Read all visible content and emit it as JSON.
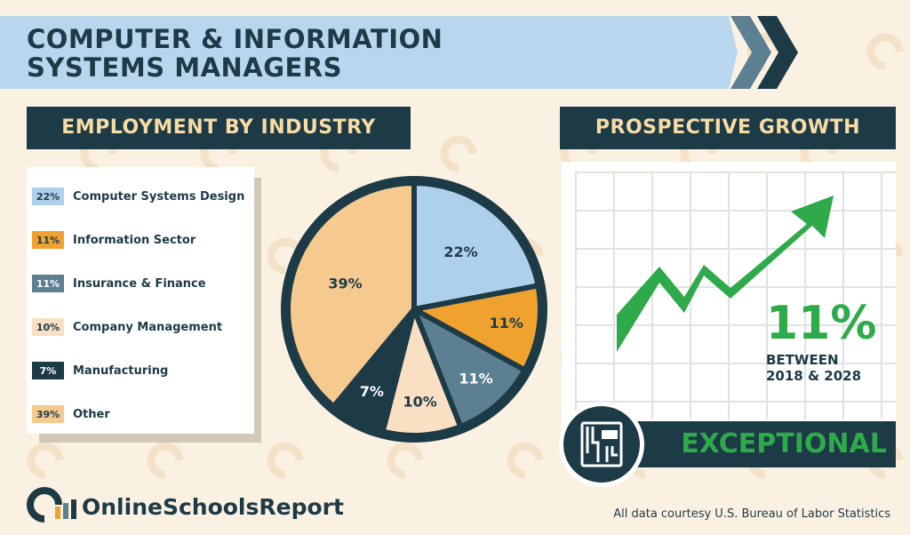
{
  "header": {
    "title_line1": "COMPUTER & INFORMATION",
    "title_line2": "SYSTEMS MANAGERS"
  },
  "employment": {
    "heading": "EMPLOYMENT BY INDUSTRY"
  },
  "chart_data": {
    "type": "pie",
    "slices": [
      {
        "label": "Computer Systems Design",
        "value": 22,
        "value_text": "22%",
        "color": "#aed0ec",
        "text_color": "#1d3a47"
      },
      {
        "label": "Information Sector",
        "value": 11,
        "value_text": "11%",
        "color": "#f0a22e",
        "text_color": "#1d3a47"
      },
      {
        "label": "Insurance & Finance",
        "value": 11,
        "value_text": "11%",
        "color": "#5d7f92",
        "text_color": "#ffffff"
      },
      {
        "label": "Company Management",
        "value": 10,
        "value_text": "10%",
        "color": "#fae0c2",
        "text_color": "#1d3a47"
      },
      {
        "label": "Manufacturing",
        "value": 7,
        "value_text": "7%",
        "color": "#1d3a47",
        "text_color": "#ffffff"
      },
      {
        "label": "Other",
        "value": 39,
        "value_text": "39%",
        "color": "#f6ca8e",
        "text_color": "#1d3a47"
      }
    ],
    "legend_position": "left",
    "title": ""
  },
  "growth": {
    "heading": "PROSPECTIVE GROWTH",
    "percent": "11%",
    "period_line1": "BETWEEN",
    "period_line2": "2018 & 2028",
    "rating": "EXCEPTIONAL",
    "arrow_color": "#2eaa4a"
  },
  "footer": {
    "brand": "OnlineSchoolsReport",
    "source": "All data courtesy U.S. Bureau of Labor Statistics"
  },
  "colors": {
    "navy": "#1d3a47",
    "cream": "#fbf1e2",
    "light_blue": "#b8d6ee",
    "gold_text": "#f8dca4",
    "green": "#2eaa4a"
  }
}
